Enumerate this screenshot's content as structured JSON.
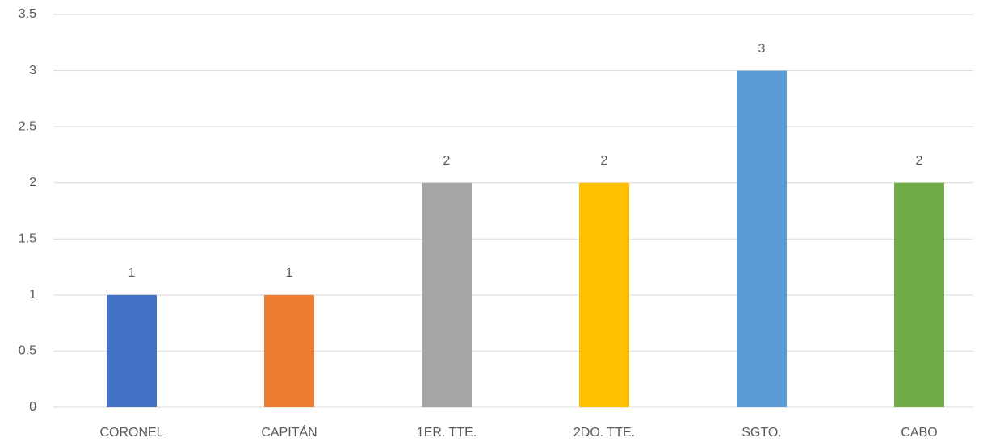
{
  "chart_data": {
    "type": "bar",
    "categories": [
      "CORONEL",
      "CAPITÁN",
      "1ER. TTE.",
      "2DO. TTE.",
      "SGTO.",
      "CABO"
    ],
    "values": [
      1,
      1,
      2,
      2,
      3,
      2
    ],
    "colors": [
      "#4472c4",
      "#ed7d31",
      "#a5a5a5",
      "#ffc000",
      "#5b9bd5",
      "#70ad47"
    ],
    "ylim": [
      0,
      3.5
    ],
    "yticks": [
      0,
      0.5,
      1,
      1.5,
      2,
      2.5,
      3,
      3.5
    ],
    "grid": true
  }
}
